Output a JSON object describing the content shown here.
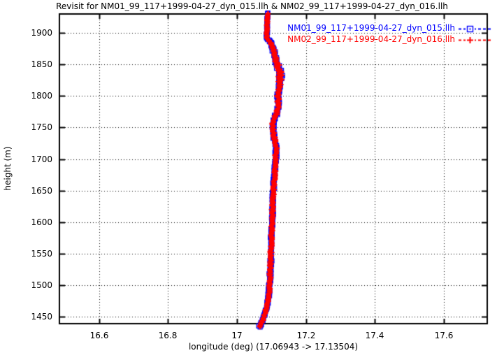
{
  "window": {
    "background": "#ffffff"
  },
  "chart_data": {
    "type": "scatter",
    "title": "Revisit for NM01_99_117+1999-04-27_dyn_015.llh & NM02_99_117+1999-04-27_dyn_016.llh",
    "xlabel": "longitude (deg) (17.06943 -> 17.13504)",
    "ylabel": "height (m)",
    "xlim": [
      16.485,
      17.726
    ],
    "ylim": [
      1439,
      1930
    ],
    "xticks": [
      16.6,
      16.8,
      17.0,
      17.2,
      17.4,
      17.6
    ],
    "xtick_labels": [
      "16.6",
      "16.8",
      "17",
      "17.2",
      "17.4",
      "17.6"
    ],
    "yticks": [
      1450,
      1500,
      1550,
      1600,
      1650,
      1700,
      1750,
      1800,
      1850,
      1900
    ],
    "ytick_labels": [
      "1450",
      "1500",
      "1550",
      "1600",
      "1650",
      "1700",
      "1750",
      "1800",
      "1850",
      "1900"
    ],
    "grid": true,
    "grid_style": "dotted",
    "legend_position": "top-right-inside",
    "lon_start": 17.06943,
    "lon_end": 17.13504,
    "series": [
      {
        "name": "NM01_99_117+1999-04-27_dyn_015.llh",
        "color": "#0000ff",
        "marker": "open-square",
        "linestyle": "dashed"
      },
      {
        "name": "NM02_99_117+1999-04-27_dyn_016.llh",
        "color": "#ff0000",
        "marker": "plus",
        "linestyle": "dashed"
      }
    ],
    "path_note": "Both series follow the same trajectory: [height_m, longitude_deg, scatter_halfwidth_deg]",
    "path": [
      [
        1434,
        17.066,
        0.006
      ],
      [
        1438,
        17.068,
        0.005
      ],
      [
        1444,
        17.074,
        0.005
      ],
      [
        1452,
        17.08,
        0.004
      ],
      [
        1465,
        17.086,
        0.004
      ],
      [
        1480,
        17.091,
        0.004
      ],
      [
        1495,
        17.094,
        0.004
      ],
      [
        1510,
        17.096,
        0.004
      ],
      [
        1525,
        17.097,
        0.004
      ],
      [
        1540,
        17.098,
        0.004
      ],
      [
        1555,
        17.099,
        0.004
      ],
      [
        1570,
        17.1,
        0.004
      ],
      [
        1585,
        17.101,
        0.0045
      ],
      [
        1600,
        17.102,
        0.0045
      ],
      [
        1615,
        17.103,
        0.004
      ],
      [
        1630,
        17.104,
        0.004
      ],
      [
        1645,
        17.105,
        0.004
      ],
      [
        1660,
        17.107,
        0.004
      ],
      [
        1675,
        17.109,
        0.004
      ],
      [
        1690,
        17.111,
        0.004
      ],
      [
        1705,
        17.113,
        0.004
      ],
      [
        1718,
        17.114,
        0.005
      ],
      [
        1728,
        17.111,
        0.005
      ],
      [
        1738,
        17.107,
        0.005
      ],
      [
        1748,
        17.104,
        0.005
      ],
      [
        1758,
        17.106,
        0.005
      ],
      [
        1768,
        17.112,
        0.005
      ],
      [
        1778,
        17.118,
        0.005
      ],
      [
        1788,
        17.12,
        0.005
      ],
      [
        1798,
        17.119,
        0.005
      ],
      [
        1808,
        17.121,
        0.005
      ],
      [
        1818,
        17.123,
        0.006
      ],
      [
        1828,
        17.125,
        0.008
      ],
      [
        1838,
        17.124,
        0.009
      ],
      [
        1845,
        17.12,
        0.008
      ],
      [
        1855,
        17.114,
        0.006
      ],
      [
        1865,
        17.109,
        0.006
      ],
      [
        1875,
        17.105,
        0.005
      ],
      [
        1885,
        17.097,
        0.004
      ],
      [
        1893,
        17.086,
        0.002
      ],
      [
        1900,
        17.087,
        0.002
      ],
      [
        1910,
        17.087,
        0.002
      ],
      [
        1920,
        17.088,
        0.002
      ],
      [
        1930,
        17.089,
        0.002
      ]
    ]
  }
}
